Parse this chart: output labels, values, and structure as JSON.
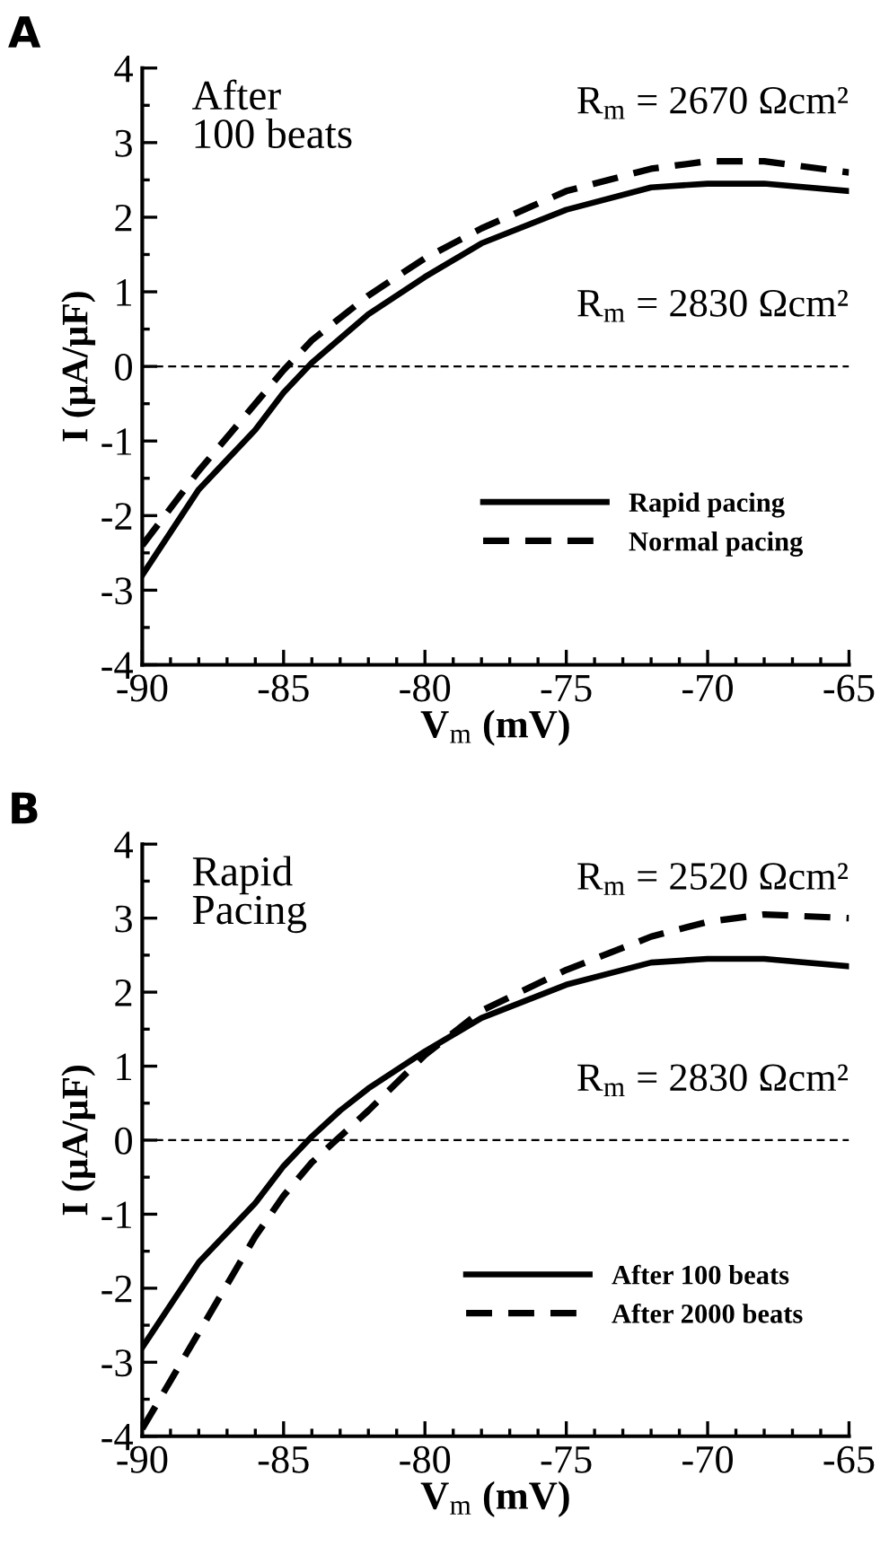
{
  "chart_data": [
    {
      "type": "line",
      "title": "A",
      "xlabel": "V$_{m}$ (mV)",
      "ylabel": "I (µA/µF)",
      "xlim": [
        -90,
        -65
      ],
      "xticks": [
        -90,
        -85,
        -80,
        -75,
        -70,
        -65
      ],
      "ylim": [
        -4,
        4
      ],
      "yticks": [
        -4,
        -3,
        -2,
        -1,
        0,
        1,
        2,
        3,
        4
      ],
      "x": [
        -90,
        -88,
        -86,
        -85,
        -84,
        -82,
        -80,
        -78,
        -75,
        -72,
        -70,
        -68,
        -65
      ],
      "series": [
        {
          "name": "Rapid pacing",
          "color": "#000000",
          "line_style": "solid",
          "values": [
            -2.8,
            -1.65,
            -0.85,
            -0.35,
            0.05,
            0.7,
            1.2,
            1.65,
            2.1,
            2.4,
            2.45,
            2.45,
            2.35
          ]
        },
        {
          "name": "Normal pacing",
          "color": "#000000",
          "line_style": "dashed",
          "values": [
            -2.4,
            -1.4,
            -0.5,
            -0.05,
            0.35,
            0.95,
            1.45,
            1.85,
            2.35,
            2.65,
            2.75,
            2.75,
            2.6
          ]
        }
      ],
      "ref_lines": [
        {
          "axis": "y",
          "value": 0,
          "line_style": "dashed",
          "color": "#000000"
        }
      ],
      "annotations": [
        "After\n100 beats",
        "R$_{m}$ = 2670 Ωcm²",
        "R$_{m}$ = 2830 Ωcm²"
      ],
      "legend": "bottom right",
      "grid": false
    },
    {
      "type": "line",
      "title": "B",
      "xlabel": "V$_{m}$ (mV)",
      "ylabel": "I (µA/µF)",
      "xlim": [
        -90,
        -65
      ],
      "xticks": [
        -90,
        -85,
        -80,
        -75,
        -70,
        -65
      ],
      "ylim": [
        -4,
        4
      ],
      "yticks": [
        -4,
        -3,
        -2,
        -1,
        0,
        1,
        2,
        3,
        4
      ],
      "x": [
        -90,
        -88,
        -86,
        -85,
        -84,
        -83,
        -82,
        -80,
        -78,
        -75,
        -72,
        -70,
        -68,
        -65
      ],
      "series": [
        {
          "name": "After 100 beats",
          "color": "#000000",
          "line_style": "solid",
          "values": [
            -2.8,
            -1.65,
            -0.85,
            -0.35,
            0.05,
            0.4,
            0.7,
            1.2,
            1.65,
            2.1,
            2.4,
            2.45,
            2.45,
            2.35
          ]
        },
        {
          "name": "After 2000 beats",
          "color": "#000000",
          "line_style": "dashed",
          "values": [
            -3.9,
            -2.6,
            -1.3,
            -0.75,
            -0.3,
            0.05,
            0.4,
            1.15,
            1.75,
            2.3,
            2.75,
            2.95,
            3.05,
            3.0
          ]
        }
      ],
      "ref_lines": [
        {
          "axis": "y",
          "value": 0,
          "line_style": "dashed",
          "color": "#000000"
        }
      ],
      "annotations": [
        "Rapid\nPacing",
        "R$_{m}$ = 2520 Ωcm²",
        "R$_{m}$ = 2830 Ωcm²"
      ],
      "legend": "bottom right",
      "grid": false
    }
  ]
}
